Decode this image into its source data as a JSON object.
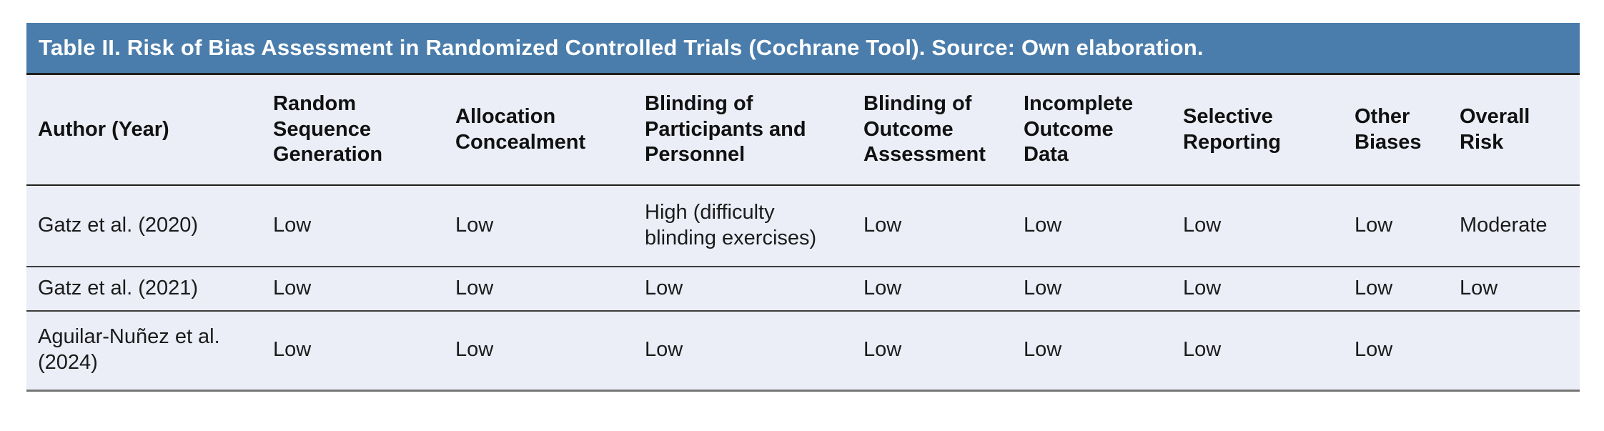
{
  "title": "Table II. Risk of Bias Assessment in Randomized Controlled Trials (Cochrane Tool). Source: Own elaboration.",
  "colors": {
    "title_bar_bg": "#4a7dab",
    "title_text": "#ffffff",
    "table_bg": "#ebeef7",
    "header_text": "#111111",
    "body_text": "#1b1b1b",
    "heavy_rule": "#1f1f1f",
    "row_rule": "#3c3c3c",
    "bottom_rule": "#757575"
  },
  "table": {
    "columns": [
      "Author (Year)",
      "Random Sequence Generation",
      "Allocation Concealment",
      "Blinding of Participants and Personnel",
      "Blinding of Outcome Assessment",
      "Incomplete Outcome Data",
      "Selective Reporting",
      "Other Biases",
      "Overall Risk"
    ],
    "rows": [
      [
        "Gatz et al. (2020)",
        "Low",
        "Low",
        "High (difficulty blinding exercises)",
        "Low",
        "Low",
        "Low",
        "Low",
        "Moderate"
      ],
      [
        "Gatz et al. (2021)",
        "Low",
        "Low",
        "Low",
        "Low",
        "Low",
        "Low",
        "Low",
        "Low"
      ],
      [
        "Aguilar-Nuñez et al. (2024)",
        "Low",
        "Low",
        "Low",
        "Low",
        "Low",
        "Low",
        "Low",
        ""
      ]
    ]
  }
}
